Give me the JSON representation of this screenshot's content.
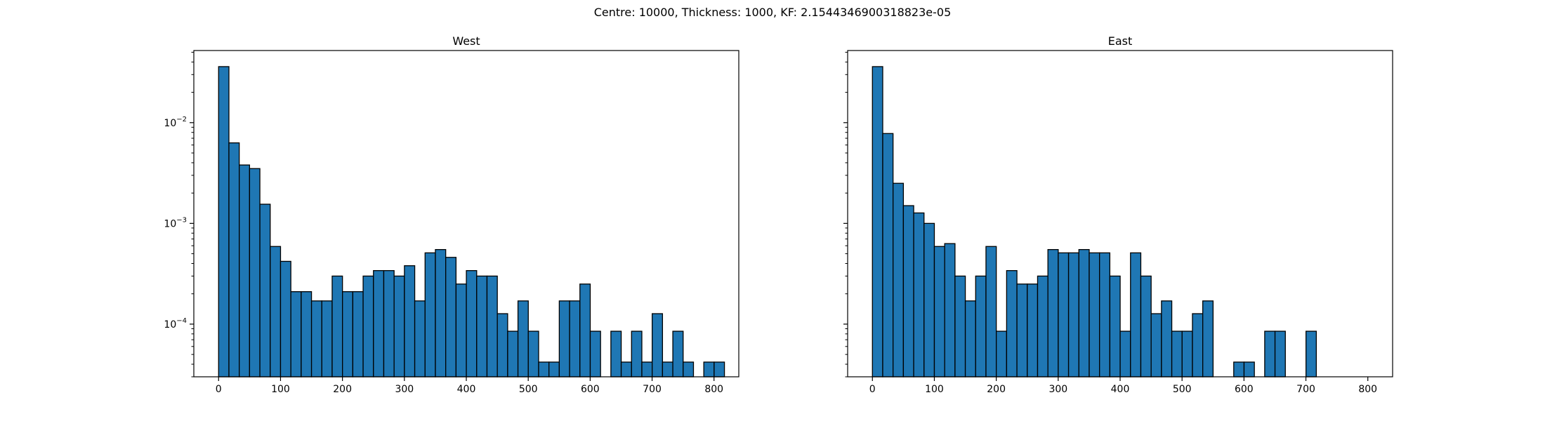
{
  "figure": {
    "suptitle": "Centre: 10000, Thickness: 1000, KF: 2.1544346900318823e-05"
  },
  "chart_data": [
    {
      "type": "bar",
      "subtype": "histogram",
      "title": "West",
      "xlabel": "",
      "ylabel": "",
      "yscale": "log",
      "xlim": [
        -40,
        840
      ],
      "ylim": [
        3e-05,
        0.052
      ],
      "xticks": [
        0,
        100,
        200,
        300,
        400,
        500,
        600,
        700,
        800
      ],
      "yticks": [
        0.0001,
        0.001,
        0.01
      ],
      "ytick_labels": [
        {
          "base": "10",
          "exp": "−4"
        },
        {
          "base": "10",
          "exp": "−3"
        },
        {
          "base": "10",
          "exp": "−2"
        }
      ],
      "bin_width": 16.67,
      "bin_start": 0,
      "values": [
        0.036,
        0.0063,
        0.0038,
        0.0035,
        0.00155,
        0.00059,
        0.00042,
        0.00021,
        0.00021,
        0.00017,
        0.00017,
        0.0003,
        0.00021,
        0.00021,
        0.0003,
        0.00034,
        0.00034,
        0.0003,
        0.00038,
        0.00017,
        0.00051,
        0.00055,
        0.00046,
        0.00025,
        0.00034,
        0.0003,
        0.0003,
        0.000127,
        8.5e-05,
        0.00017,
        8.5e-05,
        4.2e-05,
        4.2e-05,
        0.00017,
        0.00017,
        0.00025,
        8.5e-05,
        0,
        8.5e-05,
        4.2e-05,
        8.5e-05,
        4.2e-05,
        0.000127,
        4.2e-05,
        8.5e-05,
        4.2e-05,
        0,
        4.2e-05,
        4.2e-05
      ],
      "bar_color": "#1f77b4",
      "edge_color": "#000000",
      "grid": false
    },
    {
      "type": "bar",
      "subtype": "histogram",
      "title": "East",
      "xlabel": "",
      "ylabel": "",
      "yscale": "log",
      "xlim": [
        -40,
        840
      ],
      "ylim": [
        3e-05,
        0.052
      ],
      "xticks": [
        0,
        100,
        200,
        300,
        400,
        500,
        600,
        700,
        800
      ],
      "yticks": [
        0.0001,
        0.001,
        0.01
      ],
      "ytick_labels": [],
      "bin_width": 16.67,
      "bin_start": 0,
      "values": [
        0.036,
        0.0078,
        0.0025,
        0.0015,
        0.00127,
        0.001,
        0.00059,
        0.00063,
        0.0003,
        0.00017,
        0.0003,
        0.00059,
        8.5e-05,
        0.00034,
        0.00025,
        0.00025,
        0.0003,
        0.00055,
        0.00051,
        0.00051,
        0.00055,
        0.00051,
        0.00051,
        0.0003,
        8.5e-05,
        0.00051,
        0.0003,
        0.000127,
        0.00017,
        8.5e-05,
        8.5e-05,
        0.000127,
        0.00017,
        0,
        0,
        4.2e-05,
        4.2e-05,
        0,
        8.5e-05,
        8.5e-05,
        0,
        0,
        8.5e-05,
        0,
        0,
        0,
        0,
        0,
        0
      ],
      "bar_color": "#1f77b4",
      "edge_color": "#000000",
      "grid": false
    }
  ]
}
